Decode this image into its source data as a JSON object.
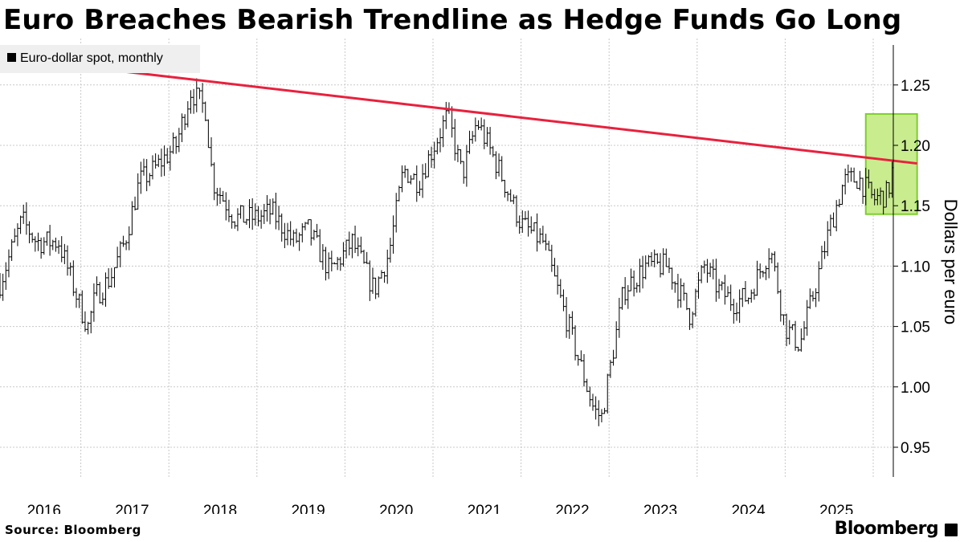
{
  "title": "Euro Breaches Bearish Trendline as Hedge Funds Go Long",
  "source": "Source: Bloomberg",
  "brand": "Bloomberg",
  "brand_icon": "bloomberg-terminal-icon",
  "colors": {
    "trendline": "#e8213d",
    "highlight_fill": "#c9ec8f",
    "highlight_border": "#7ccf2c",
    "bars": "#000000",
    "grid": "#c8c8c8",
    "legend_bg": "#efefef"
  },
  "chart_data": {
    "type": "ohlc",
    "legend": {
      "label": "Euro-dollar spot, monthly",
      "position": "top-left"
    },
    "ylabel": "Dollars per euro",
    "yaxis_side": "right",
    "ylim": [
      0.92,
      1.28
    ],
    "yticks": [
      "0.95",
      "1.00",
      "1.05",
      "1.10",
      "1.15",
      "1.20",
      "1.25"
    ],
    "x_tick_labels": [
      "2016",
      "2017",
      "2018",
      "2019",
      "2020",
      "2021",
      "2022",
      "2023",
      "2024",
      "2025"
    ],
    "grid": "dotted",
    "price_path": [
      [
        "2015-12",
        1.086
      ],
      [
        "2016-03",
        1.138
      ],
      [
        "2016-05",
        1.12
      ],
      [
        "2016-08",
        1.12
      ],
      [
        "2016-11",
        1.065
      ],
      [
        "2016-12",
        1.05
      ],
      [
        "2017-01",
        1.075
      ],
      [
        "2017-03",
        1.09
      ],
      [
        "2017-05",
        1.12
      ],
      [
        "2017-07",
        1.17
      ],
      [
        "2017-09",
        1.18
      ],
      [
        "2017-12",
        1.2
      ],
      [
        "2018-02",
        1.245
      ],
      [
        "2018-04",
        1.23
      ],
      [
        "2018-05",
        1.17
      ],
      [
        "2018-08",
        1.14
      ],
      [
        "2018-11",
        1.14
      ],
      [
        "2019-01",
        1.145
      ],
      [
        "2019-04",
        1.12
      ],
      [
        "2019-06",
        1.13
      ],
      [
        "2019-09",
        1.095
      ],
      [
        "2019-12",
        1.12
      ],
      [
        "2020-03",
        1.08
      ],
      [
        "2020-05",
        1.11
      ],
      [
        "2020-07",
        1.18
      ],
      [
        "2020-09",
        1.17
      ],
      [
        "2021-01",
        1.225
      ],
      [
        "2021-03",
        1.175
      ],
      [
        "2021-05",
        1.22
      ],
      [
        "2021-08",
        1.18
      ],
      [
        "2021-11",
        1.135
      ],
      [
        "2022-02",
        1.12
      ],
      [
        "2022-05",
        1.06
      ],
      [
        "2022-07",
        1.02
      ],
      [
        "2022-09",
        0.98
      ],
      [
        "2022-10",
        0.975
      ],
      [
        "2023-01",
        1.08
      ],
      [
        "2023-04",
        1.1
      ],
      [
        "2023-07",
        1.1
      ],
      [
        "2023-10",
        1.06
      ],
      [
        "2023-12",
        1.1
      ],
      [
        "2024-02",
        1.08
      ],
      [
        "2024-04",
        1.07
      ],
      [
        "2024-06",
        1.075
      ],
      [
        "2024-09",
        1.115
      ],
      [
        "2024-11",
        1.05
      ],
      [
        "2025-01",
        1.035
      ],
      [
        "2025-03",
        1.08
      ],
      [
        "2025-05",
        1.13
      ],
      [
        "2025-07",
        1.17
      ],
      [
        "2025-09",
        1.173
      ],
      [
        "2025-11",
        1.155
      ],
      [
        "2026-01",
        1.16
      ],
      [
        "2026-02",
        1.19
      ]
    ],
    "trendline": {
      "start": [
        "2015-12",
        1.273
      ],
      "end": [
        "2026-05",
        1.185
      ]
    },
    "highlight": {
      "x_range": [
        "2025-10",
        "2026-05"
      ],
      "y_range": [
        1.143,
        1.226
      ]
    }
  }
}
